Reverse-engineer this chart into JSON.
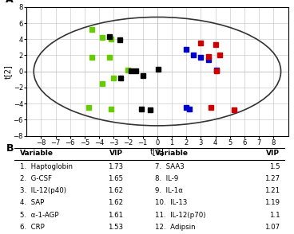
{
  "title_A": "A",
  "title_B": "B",
  "xlabel": "t[1]",
  "ylabel": "t[2]",
  "xlim": [
    -9,
    9
  ],
  "ylim": [
    -8,
    8
  ],
  "xticks": [
    -8,
    -7,
    -6,
    -5,
    -4,
    -3,
    -2,
    -1,
    0,
    1,
    2,
    3,
    4,
    5,
    6,
    7,
    8
  ],
  "yticks": [
    -8,
    -6,
    -4,
    -2,
    0,
    2,
    4,
    6,
    8
  ],
  "green_points": [
    [
      -4.5,
      5.2
    ],
    [
      -3.8,
      4.2
    ],
    [
      -3.2,
      4.0
    ],
    [
      -4.5,
      1.7
    ],
    [
      -3.3,
      1.7
    ],
    [
      -3.8,
      -1.5
    ],
    [
      -4.7,
      -4.5
    ],
    [
      -3.2,
      -4.7
    ],
    [
      -3.0,
      -0.8
    ],
    [
      -2.0,
      0.2
    ]
  ],
  "black_points": [
    [
      -3.3,
      4.3
    ],
    [
      -2.6,
      3.9
    ],
    [
      -1.8,
      0.1
    ],
    [
      -1.0,
      -0.5
    ],
    [
      -1.1,
      -4.7
    ],
    [
      -0.5,
      -4.8
    ],
    [
      -2.5,
      -0.8
    ],
    [
      0.05,
      0.3
    ],
    [
      -1.5,
      0.1
    ]
  ],
  "blue_points": [
    [
      2.0,
      2.7
    ],
    [
      2.5,
      2.0
    ],
    [
      3.0,
      1.7
    ],
    [
      2.0,
      -4.5
    ],
    [
      2.2,
      -4.7
    ],
    [
      4.1,
      0.2
    ],
    [
      3.5,
      1.5
    ]
  ],
  "red_points": [
    [
      3.0,
      3.5
    ],
    [
      4.0,
      3.3
    ],
    [
      3.5,
      1.8
    ],
    [
      4.1,
      0.1
    ],
    [
      3.7,
      -4.5
    ],
    [
      5.3,
      -4.8
    ],
    [
      4.3,
      2.0
    ]
  ],
  "table_data": {
    "left_variable": [
      "1.  Haptoglobin",
      "2.  G-CSF",
      "3.  IL-12(p40)",
      "4.  SAP",
      "5.  α-1-AGP",
      "6.  CRP"
    ],
    "left_vip": [
      "1.73",
      "1.65",
      "1.62",
      "1.62",
      "1.61",
      "1.53"
    ],
    "right_variable": [
      "7.  SAA3",
      "8.  IL-9",
      "9.  IL-1α",
      "10.  IL-13",
      "11.  IL-12(p70)",
      "12.  Adipsin"
    ],
    "right_vip": [
      "1.5",
      "1.27",
      "1.21",
      "1.19",
      "1.1",
      "1.07"
    ]
  },
  "green_color": "#66cc00",
  "black_color": "#000000",
  "blue_color": "#0000cc",
  "red_color": "#cc0000",
  "bg_color": "#ffffff",
  "grid_color": "#cccccc",
  "ellipse_color": "#333333"
}
